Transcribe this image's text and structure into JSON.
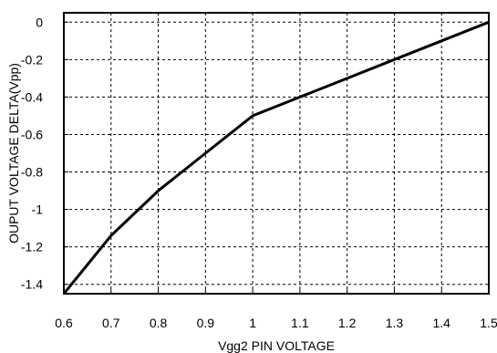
{
  "chart_data": {
    "type": "line",
    "title": "",
    "xlabel": "Vgg2 PIN VOLTAGE",
    "ylabel": "OUPUT VOLTAGE DELTA(Vpp)",
    "xlim": [
      0.6,
      1.5
    ],
    "ylim": [
      -1.45,
      0.05
    ],
    "grid": true,
    "grid_style": "dotted",
    "legend": "none",
    "x_ticks": [
      {
        "value": 0.6,
        "label": "0.6"
      },
      {
        "value": 0.7,
        "label": "0.7"
      },
      {
        "value": 0.8,
        "label": "0.8"
      },
      {
        "value": 0.9,
        "label": "0.9"
      },
      {
        "value": 1.0,
        "label": "1"
      },
      {
        "value": 1.1,
        "label": "1.1"
      },
      {
        "value": 1.2,
        "label": "1.2"
      },
      {
        "value": 1.3,
        "label": "1.3"
      },
      {
        "value": 1.4,
        "label": "1.4"
      },
      {
        "value": 1.5,
        "label": "1.5"
      }
    ],
    "y_ticks": [
      {
        "value": 0,
        "label": "0"
      },
      {
        "value": -0.2,
        "label": "-0.2"
      },
      {
        "value": -0.4,
        "label": "-0.4"
      },
      {
        "value": -0.6,
        "label": "-0.6"
      },
      {
        "value": -0.8,
        "label": "-0.8"
      },
      {
        "value": -1.0,
        "label": "-1"
      },
      {
        "value": -1.2,
        "label": "-1.2"
      },
      {
        "value": -1.4,
        "label": "-1.4"
      }
    ],
    "series": [
      {
        "color": "#000000",
        "x": [
          0.6,
          0.7,
          0.8,
          0.9,
          1.0,
          1.1,
          1.2,
          1.3,
          1.4,
          1.5
        ],
        "y": [
          -1.45,
          -1.14,
          -0.9,
          -0.7,
          -0.5,
          -0.4,
          -0.3,
          -0.2,
          -0.1,
          0.0
        ]
      }
    ]
  }
}
